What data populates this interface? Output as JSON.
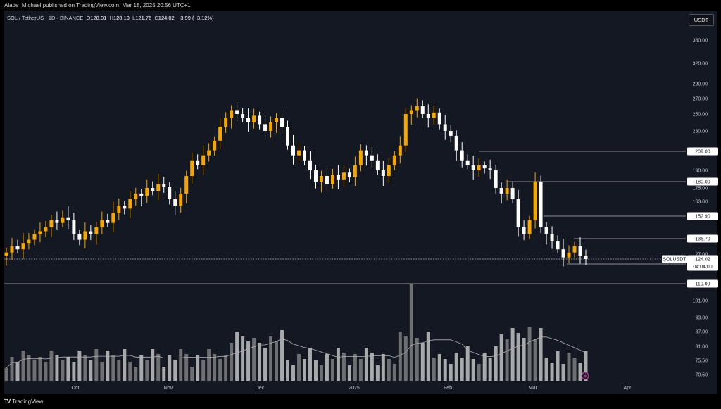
{
  "header": {
    "publisher": "Alade_Michael published on TradingView.com, Mar 18, 2025 20:56 UTC+1"
  },
  "symbol": {
    "name": "SOL / TetherUS · 1D · BINANCE",
    "o_label": "O",
    "o": "128.01",
    "h_label": "H",
    "h": "128.19",
    "l_label": "L",
    "l": "121.76",
    "c_label": "C",
    "c": "124.02",
    "change": "−3.99 (−3.12%)"
  },
  "currency_button": "USDT",
  "price_axis": [
    "360.00",
    "320.00",
    "290.00",
    "270.00",
    "250.00",
    "230.00",
    "209.00",
    "190.00",
    "180.00",
    "175.00",
    "163.00",
    "152.90",
    "136.70",
    "127.00",
    "124.02",
    "120.70",
    "110.00",
    "101.00",
    "93.00",
    "87.00",
    "81.00",
    "75.50",
    "70.50"
  ],
  "price_ticks_plain": [
    "360.00",
    "320.00",
    "290.00",
    "270.00",
    "250.00",
    "230.00",
    "190.00",
    "175.00",
    "163.00",
    "127.00",
    "101.00",
    "93.00",
    "87.00",
    "81.00",
    "75.50",
    "70.50"
  ],
  "levels": [
    "209.00",
    "180.00",
    "152.90",
    "136.70",
    "120.70",
    "110.00"
  ],
  "last_price": {
    "symbol": "SOLUSDT",
    "price": "124.02",
    "countdown": "04:04:00"
  },
  "time_axis": [
    "Oct",
    "Nov",
    "Dec",
    "2025",
    "Feb",
    "Mar",
    "Apr"
  ],
  "footer": {
    "brand": "TradingView"
  },
  "colors": {
    "up": "#f7a600",
    "down": "#ffffff",
    "bg": "#141823",
    "volume_up": "#8c8c8c",
    "volume_down": "#d9d9d9"
  },
  "chart_data": {
    "type": "candlestick",
    "title": "SOL / TetherUS · 1D · BINANCE",
    "y_scale": "log",
    "ylim": [
      70.5,
      360
    ],
    "x_labels": [
      "Oct",
      "Nov",
      "Dec",
      "2025",
      "Feb",
      "Mar",
      "Apr"
    ],
    "closes_approx": [
      128,
      132,
      130,
      134,
      136,
      140,
      142,
      145,
      150,
      148,
      152,
      150,
      140,
      136,
      142,
      140,
      145,
      150,
      148,
      155,
      160,
      158,
      165,
      170,
      168,
      175,
      172,
      178,
      176,
      165,
      160,
      170,
      185,
      200,
      195,
      205,
      210,
      220,
      235,
      245,
      255,
      250,
      245,
      240,
      248,
      238,
      230,
      240,
      245,
      235,
      215,
      205,
      210,
      200,
      190,
      180,
      185,
      178,
      186,
      182,
      188,
      184,
      195,
      210,
      205,
      200,
      190,
      185,
      195,
      205,
      215,
      250,
      255,
      260,
      250,
      245,
      252,
      238,
      230,
      225,
      210,
      200,
      195,
      190,
      195,
      192,
      190,
      175,
      170,
      175,
      165,
      145,
      140,
      150,
      180,
      145,
      140,
      135,
      130,
      125,
      128,
      132,
      126,
      124.02
    ],
    "volume_note": "relative daily volume bars with moving average"
  }
}
